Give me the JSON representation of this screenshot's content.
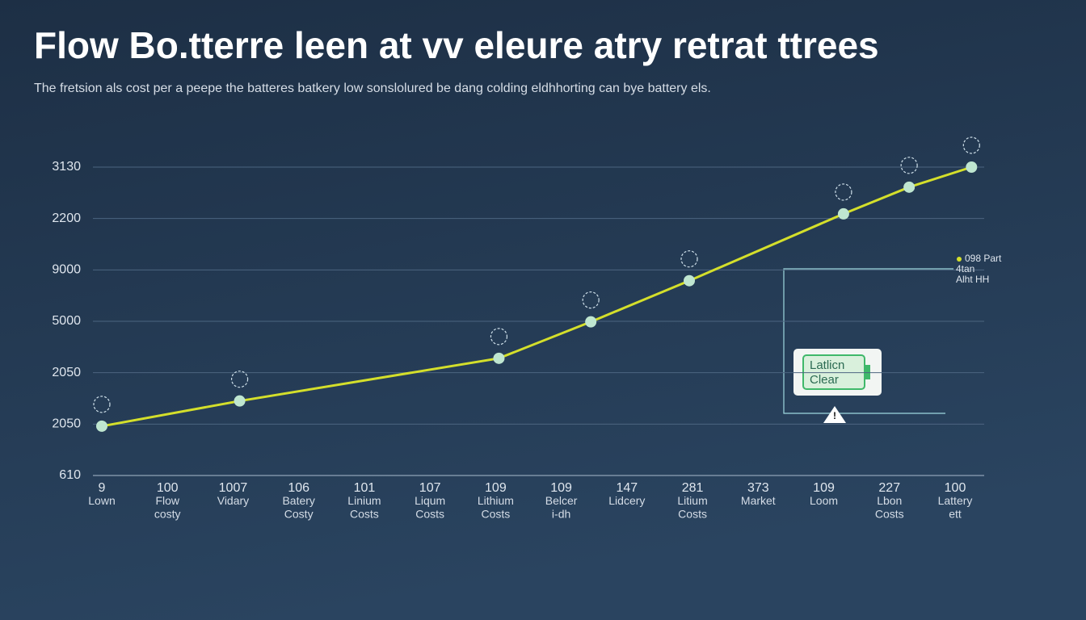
{
  "chart_data": {
    "type": "line",
    "title": "Flow Bo.tterre leen at vv  eleure atry retrat ttrees",
    "subtitle": "The fretsion als cost per a peepe the batteres batkery low sonslolured be dang colding eldhhorting can bye battery els.",
    "categories": [
      [
        "9",
        "Lown"
      ],
      [
        "100",
        "Flow",
        "costy"
      ],
      [
        "1007",
        "Vidary"
      ],
      [
        "106",
        "Batery",
        "Costy"
      ],
      [
        "101",
        "Linium",
        "Costs"
      ],
      [
        "107",
        "Liqum",
        "Costs"
      ],
      [
        "109",
        "Lithium",
        "Costs"
      ],
      [
        "109",
        "Belcer",
        "i-dh"
      ],
      [
        "147",
        "Lidcery"
      ],
      [
        "281",
        "Litium",
        "Costs"
      ],
      [
        "373",
        "Market"
      ],
      [
        "109",
        "Loom"
      ],
      [
        "227",
        "Lbon",
        "Costs"
      ],
      [
        "100",
        "Lattery",
        "ett"
      ]
    ],
    "x": [
      0,
      2.1,
      6.05,
      7.45,
      8.95,
      11.3,
      12.3,
      13.25
    ],
    "values": [
      0.96,
      1.45,
      2.28,
      2.99,
      3.79,
      5.09,
      5.61,
      6.0
    ],
    "color": "#d4df2b",
    "marker_color": "#bfe6d0",
    "xlim": [
      0,
      13
    ],
    "ylim": [
      0,
      6
    ],
    "yticks": [
      {
        "value": 0,
        "label": "610"
      },
      {
        "value": 1,
        "label": "2050"
      },
      {
        "value": 2,
        "label": "2050"
      },
      {
        "value": 3,
        "label": "5000"
      },
      {
        "value": 4,
        "label": "9000"
      },
      {
        "value": 5,
        "label": "2200"
      },
      {
        "value": 6,
        "label": "3130"
      }
    ],
    "grid": true,
    "legend": [
      "098 Part",
      "4tan",
      "Alht HH"
    ],
    "callout": [
      "Latlicn",
      "Clear"
    ]
  }
}
